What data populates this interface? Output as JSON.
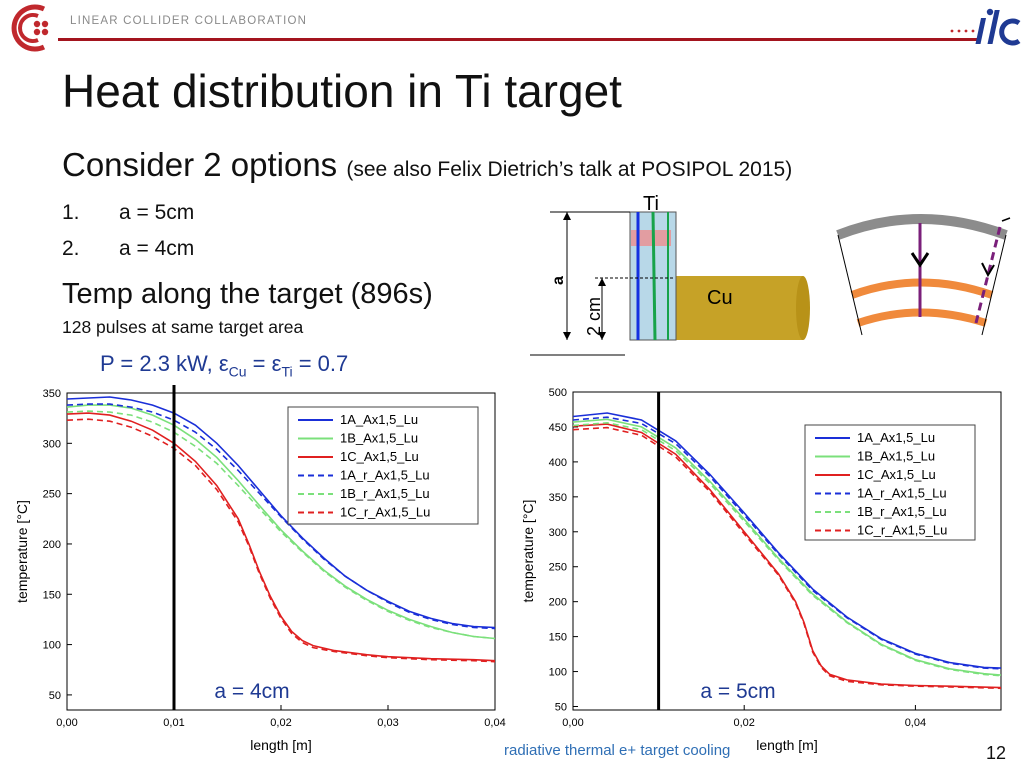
{
  "header": {
    "collaboration_name": "LINEAR COLLIDER COLLABORATION",
    "brand_colors": {
      "rule": "#a3141e",
      "logo": "#c0282d",
      "ilc_logo": "#1f3a93"
    }
  },
  "slide": {
    "title": "Heat distribution in Ti target",
    "subtitle": "Consider 2 options",
    "subtitle_note": "(see also Felix Dietrich’s talk at POSIPOL 2015)",
    "options": [
      {
        "number": "1.",
        "text": "a = 5cm"
      },
      {
        "number": "2.",
        "text": "a = 4cm"
      }
    ],
    "temp_heading": "Temp along the target (896s)",
    "pulses_note": "128 pulses at same target area",
    "params": {
      "p": "P = 2.3 kW, ",
      "eps1": "ε",
      "sub1": "Cu",
      "mid": " = ",
      "eps2": "ε",
      "sub2": "Ti",
      "tail": " = 0.7"
    },
    "footer_text": "radiative thermal e+ target cooling",
    "page_number": "12"
  },
  "diagram": {
    "ti_label": "Ti",
    "cu_label": "Cu",
    "a_label": "a",
    "two_cm_label": "2 cm",
    "colors": {
      "cu": "#c6a227",
      "ti": "#b8d8e8",
      "line_blue": "#1431e0",
      "line_green": "#17a34a",
      "hot": "#f08a8a"
    }
  },
  "chart_data": [
    {
      "type": "line",
      "title": "",
      "xlabel": "length [m]",
      "ylabel": "temperature [°C]",
      "xlim": [
        0,
        0.04
      ],
      "ylim": [
        35,
        350
      ],
      "xticks": [
        0,
        0.01,
        0.02,
        0.03,
        0.04
      ],
      "xtick_labels": [
        "0,00",
        "0,01",
        "0,02",
        "0,03",
        "0,04"
      ],
      "yticks": [
        50,
        100,
        150,
        200,
        250,
        300,
        350
      ],
      "vline_x": 0.01,
      "annotation": "a = 4cm",
      "legend_position": "top-right",
      "series": [
        {
          "name": "1A_Ax1,5_Lu",
          "color": "#1a2fd8",
          "dashed": false,
          "x": [
            0,
            0.002,
            0.004,
            0.006,
            0.008,
            0.01,
            0.012,
            0.014,
            0.016,
            0.018,
            0.02,
            0.022,
            0.024,
            0.026,
            0.028,
            0.03,
            0.032,
            0.034,
            0.036,
            0.038,
            0.04
          ],
          "y": [
            344,
            345,
            346,
            343,
            338,
            330,
            318,
            300,
            278,
            253,
            228,
            206,
            186,
            168,
            154,
            143,
            133,
            126,
            121,
            118,
            117
          ]
        },
        {
          "name": "1B_Ax1,5_Lu",
          "color": "#7be07b",
          "dashed": false,
          "x": [
            0,
            0.002,
            0.004,
            0.006,
            0.008,
            0.01,
            0.012,
            0.014,
            0.016,
            0.018,
            0.02,
            0.022,
            0.024,
            0.026,
            0.028,
            0.03,
            0.032,
            0.034,
            0.036,
            0.038,
            0.04
          ],
          "y": [
            336,
            338,
            338,
            335,
            328,
            318,
            304,
            286,
            263,
            238,
            214,
            193,
            174,
            158,
            145,
            134,
            125,
            118,
            112,
            108,
            106
          ]
        },
        {
          "name": "1C_Ax1,5_Lu",
          "color": "#e02020",
          "dashed": false,
          "x": [
            0,
            0.002,
            0.004,
            0.006,
            0.008,
            0.01,
            0.012,
            0.014,
            0.016,
            0.017,
            0.018,
            0.019,
            0.02,
            0.021,
            0.022,
            0.023,
            0.025,
            0.028,
            0.03,
            0.034,
            0.038,
            0.04
          ],
          "y": [
            329,
            330,
            328,
            322,
            313,
            300,
            282,
            258,
            225,
            200,
            172,
            148,
            128,
            113,
            104,
            99,
            94,
            90,
            88,
            86,
            85,
            84
          ]
        },
        {
          "name": "1A_r_Ax1,5_Lu",
          "color": "#1a2fd8",
          "dashed": true,
          "x": [
            0,
            0.002,
            0.004,
            0.006,
            0.008,
            0.01,
            0.012,
            0.014,
            0.016,
            0.018,
            0.02,
            0.022,
            0.024,
            0.026,
            0.028,
            0.03,
            0.032,
            0.034,
            0.036,
            0.038,
            0.04
          ],
          "y": [
            338,
            339,
            339,
            336,
            331,
            323,
            311,
            294,
            273,
            250,
            227,
            205,
            185,
            168,
            154,
            142,
            132,
            125,
            120,
            117,
            116
          ]
        },
        {
          "name": "1B_r_Ax1,5_Lu",
          "color": "#7be07b",
          "dashed": true,
          "x": [
            0,
            0.002,
            0.004,
            0.006,
            0.008,
            0.01,
            0.012,
            0.014,
            0.016,
            0.018,
            0.02,
            0.022,
            0.024,
            0.026,
            0.028,
            0.03,
            0.032,
            0.034,
            0.036,
            0.038,
            0.04
          ],
          "y": [
            331,
            332,
            331,
            328,
            321,
            311,
            297,
            280,
            258,
            235,
            212,
            192,
            173,
            157,
            144,
            133,
            124,
            117,
            112,
            108,
            106
          ]
        },
        {
          "name": "1C_r_Ax1,5_Lu",
          "color": "#e02020",
          "dashed": true,
          "x": [
            0,
            0.002,
            0.004,
            0.006,
            0.008,
            0.01,
            0.012,
            0.014,
            0.016,
            0.017,
            0.018,
            0.019,
            0.02,
            0.021,
            0.022,
            0.023,
            0.025,
            0.028,
            0.03,
            0.034,
            0.038,
            0.04
          ],
          "y": [
            323,
            324,
            322,
            316,
            307,
            295,
            278,
            254,
            222,
            198,
            170,
            146,
            126,
            111,
            102,
            97,
            93,
            89,
            87,
            85,
            84,
            83
          ]
        }
      ]
    },
    {
      "type": "line",
      "title": "",
      "xlabel": "length [m]",
      "ylabel": "temperature [°C]",
      "xlim": [
        0,
        0.05
      ],
      "ylim": [
        45,
        500
      ],
      "xticks": [
        0,
        0.02,
        0.04
      ],
      "xtick_labels": [
        "0,00",
        "0,02",
        "0,04"
      ],
      "yticks": [
        50,
        100,
        150,
        200,
        250,
        300,
        350,
        400,
        450,
        500
      ],
      "vline_x": 0.01,
      "annotation": "a = 5cm",
      "legend_position": "top-right",
      "series": [
        {
          "name": "1A_Ax1,5_Lu",
          "color": "#1a2fd8",
          "dashed": false,
          "x": [
            0,
            0.004,
            0.008,
            0.012,
            0.016,
            0.02,
            0.024,
            0.028,
            0.032,
            0.036,
            0.04,
            0.044,
            0.048,
            0.05
          ],
          "y": [
            465,
            470,
            460,
            430,
            382,
            327,
            270,
            218,
            178,
            147,
            126,
            113,
            106,
            105
          ]
        },
        {
          "name": "1B_Ax1,5_Lu",
          "color": "#7be07b",
          "dashed": false,
          "x": [
            0,
            0.004,
            0.008,
            0.012,
            0.016,
            0.02,
            0.024,
            0.028,
            0.032,
            0.036,
            0.04,
            0.044,
            0.048,
            0.05
          ],
          "y": [
            457,
            461,
            450,
            420,
            372,
            318,
            262,
            211,
            171,
            139,
            117,
            104,
            97,
            95
          ]
        },
        {
          "name": "1C_Ax1,5_Lu",
          "color": "#e02020",
          "dashed": false,
          "x": [
            0,
            0.004,
            0.008,
            0.012,
            0.016,
            0.02,
            0.024,
            0.026,
            0.027,
            0.028,
            0.029,
            0.03,
            0.032,
            0.036,
            0.04,
            0.044,
            0.05
          ],
          "y": [
            451,
            454,
            442,
            411,
            360,
            300,
            240,
            200,
            170,
            130,
            108,
            96,
            88,
            82,
            80,
            79,
            77
          ]
        },
        {
          "name": "1A_r_Ax1,5_Lu",
          "color": "#1a2fd8",
          "dashed": true,
          "x": [
            0,
            0.004,
            0.008,
            0.012,
            0.016,
            0.02,
            0.024,
            0.028,
            0.032,
            0.036,
            0.04,
            0.044,
            0.048,
            0.05
          ],
          "y": [
            460,
            464,
            455,
            426,
            379,
            324,
            268,
            216,
            177,
            146,
            125,
            112,
            105,
            104
          ]
        },
        {
          "name": "1B_r_Ax1,5_Lu",
          "color": "#7be07b",
          "dashed": true,
          "x": [
            0,
            0.004,
            0.008,
            0.012,
            0.016,
            0.02,
            0.024,
            0.028,
            0.032,
            0.036,
            0.04,
            0.044,
            0.048,
            0.05
          ],
          "y": [
            452,
            456,
            446,
            416,
            369,
            315,
            260,
            209,
            170,
            138,
            116,
            103,
            96,
            94
          ]
        },
        {
          "name": "1C_r_Ax1,5_Lu",
          "color": "#e02020",
          "dashed": true,
          "x": [
            0,
            0.004,
            0.008,
            0.012,
            0.016,
            0.02,
            0.024,
            0.026,
            0.027,
            0.028,
            0.029,
            0.03,
            0.032,
            0.036,
            0.04,
            0.044,
            0.05
          ],
          "y": [
            446,
            449,
            438,
            407,
            357,
            297,
            238,
            198,
            168,
            128,
            106,
            94,
            86,
            81,
            79,
            78,
            76
          ]
        }
      ]
    }
  ]
}
